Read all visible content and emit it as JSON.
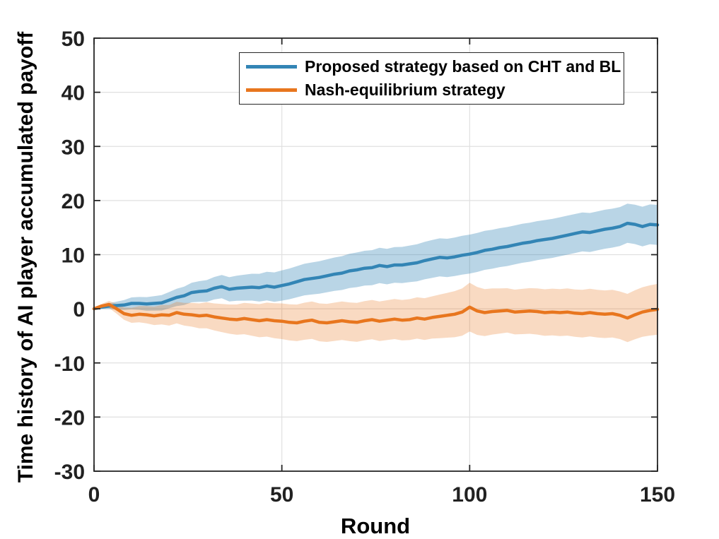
{
  "chart_data": {
    "type": "line",
    "title": "",
    "xlabel": "Round",
    "ylabel": "Time history of AI player accumulated payoff",
    "xlim": [
      0,
      150
    ],
    "ylim": [
      -30,
      50
    ],
    "x_ticks": [
      0,
      50,
      100,
      150
    ],
    "y_ticks": [
      -30,
      -20,
      -10,
      0,
      10,
      20,
      30,
      40,
      50
    ],
    "grid": "on",
    "legend_position": "top-center",
    "x_step": 2,
    "colors": {
      "grid": "#E0E0E0",
      "axis": "#262626",
      "background": "#FFFFFF"
    },
    "series": [
      {
        "name": "Proposed strategy based on CHT and BL",
        "line_color": "#3385B5",
        "band_alpha": 0.34,
        "mean": [
          0.0,
          0.3,
          0.5,
          0.6,
          0.7,
          1.0,
          1.0,
          0.9,
          1.0,
          1.1,
          1.6,
          2.1,
          2.4,
          3.0,
          3.2,
          3.3,
          3.8,
          4.1,
          3.6,
          3.8,
          3.9,
          4.0,
          3.9,
          4.2,
          4.0,
          4.3,
          4.6,
          5.0,
          5.4,
          5.6,
          5.8,
          6.1,
          6.4,
          6.6,
          7.0,
          7.2,
          7.5,
          7.6,
          8.0,
          7.8,
          8.1,
          8.1,
          8.3,
          8.5,
          8.9,
          9.2,
          9.5,
          9.4,
          9.6,
          9.9,
          10.1,
          10.4,
          10.8,
          11.0,
          11.3,
          11.5,
          11.8,
          12.1,
          12.3,
          12.6,
          12.8,
          13.0,
          13.3,
          13.6,
          13.9,
          14.2,
          14.1,
          14.4,
          14.7,
          14.9,
          15.2,
          15.8,
          15.6,
          15.2,
          15.6,
          15.5
        ],
        "band_rounds": [
          0,
          10,
          20,
          30,
          40,
          50,
          60,
          70,
          80,
          90,
          100,
          110,
          120,
          130,
          140,
          150
        ],
        "band_halfwidth": [
          0.15,
          1.1,
          1.5,
          2.0,
          2.4,
          2.8,
          3.0,
          3.2,
          3.3,
          3.5,
          3.6,
          3.6,
          3.6,
          3.6,
          3.6,
          3.7
        ]
      },
      {
        "name": "Nash-equilibrium strategy",
        "line_color": "#E8761E",
        "band_alpha": 0.27,
        "mean": [
          0.0,
          0.5,
          0.8,
          0.0,
          -0.9,
          -1.2,
          -1.0,
          -1.1,
          -1.3,
          -1.1,
          -1.2,
          -0.7,
          -1.0,
          -1.1,
          -1.3,
          -1.2,
          -1.5,
          -1.7,
          -1.9,
          -2.0,
          -1.8,
          -2.0,
          -2.2,
          -2.0,
          -2.2,
          -2.3,
          -2.5,
          -2.6,
          -2.3,
          -2.1,
          -2.5,
          -2.6,
          -2.4,
          -2.2,
          -2.4,
          -2.5,
          -2.2,
          -2.0,
          -2.3,
          -2.1,
          -1.9,
          -2.1,
          -2.0,
          -1.7,
          -1.9,
          -1.6,
          -1.4,
          -1.2,
          -1.0,
          -0.6,
          0.3,
          -0.4,
          -0.7,
          -0.5,
          -0.4,
          -0.3,
          -0.6,
          -0.5,
          -0.4,
          -0.5,
          -0.7,
          -0.6,
          -0.7,
          -0.6,
          -0.8,
          -0.9,
          -0.7,
          -0.9,
          -1.0,
          -0.9,
          -1.2,
          -1.7,
          -1.1,
          -0.6,
          -0.3,
          -0.1
        ],
        "band_rounds": [
          0,
          10,
          20,
          30,
          40,
          50,
          60,
          70,
          80,
          90,
          100,
          110,
          120,
          130,
          140,
          150
        ],
        "band_halfwidth": [
          0.15,
          1.4,
          1.9,
          2.4,
          2.9,
          3.3,
          3.5,
          3.6,
          3.7,
          3.9,
          4.5,
          4.1,
          4.3,
          4.4,
          4.4,
          4.7
        ]
      }
    ]
  },
  "legend": {
    "items": [
      {
        "label": "Proposed strategy based on CHT and BL"
      },
      {
        "label": "Nash-equilibrium strategy"
      }
    ]
  }
}
